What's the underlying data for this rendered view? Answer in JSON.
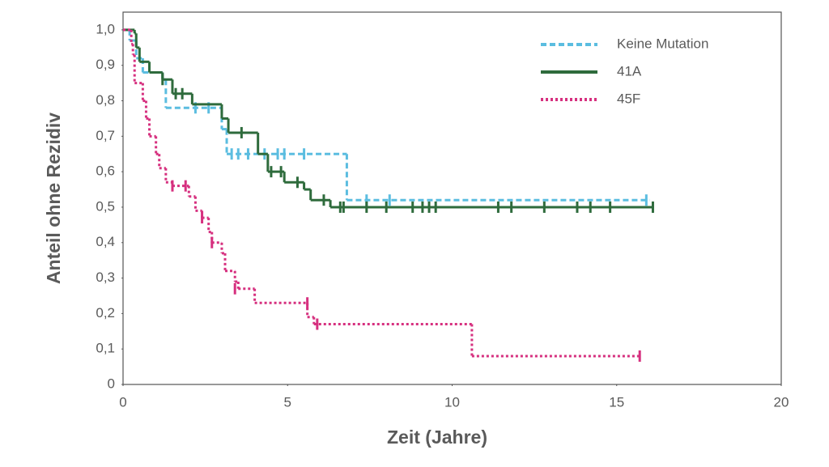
{
  "chart_data": {
    "type": "step",
    "x_label": "Zeit (Jahre)",
    "y_label": "Anteil ohne Rezidiv",
    "xlim": [
      0,
      20
    ],
    "xticks": [
      0,
      5,
      10,
      15,
      20
    ],
    "ylim": [
      0,
      1.05
    ],
    "yticks": [
      0,
      {
        "value": 0.1,
        "label": "0,1"
      },
      {
        "value": 0.2,
        "label": "0,2"
      },
      {
        "value": 0.3,
        "label": "0,3"
      },
      {
        "value": 0.4,
        "label": "0,4"
      },
      {
        "value": 0.5,
        "label": "0,5"
      },
      {
        "value": 0.6,
        "label": "0,6"
      },
      {
        "value": 0.7,
        "label": "0,7"
      },
      {
        "value": 0.8,
        "label": "0,8"
      },
      {
        "value": 0.9,
        "label": "0,9"
      },
      {
        "value": 1.0,
        "label": "1,0"
      }
    ],
    "grid": false,
    "legend": "upper right",
    "series": [
      {
        "name": "Keine Mutation",
        "color": "#5bbde0",
        "dash": "dashed",
        "x": [
          0,
          0.2,
          0.4,
          0.6,
          1.2,
          1.3,
          3.0,
          3.15,
          6.8,
          16.0
        ],
        "values": [
          1.0,
          0.97,
          0.92,
          0.88,
          0.86,
          0.78,
          0.72,
          0.65,
          0.52,
          0.52
        ],
        "censored": {
          "x": [
            2.2,
            2.6,
            3.3,
            3.5,
            3.8,
            4.3,
            4.7,
            4.9,
            5.5,
            7.4,
            8.1,
            15.9
          ],
          "values": [
            0.78,
            0.78,
            0.65,
            0.65,
            0.65,
            0.65,
            0.65,
            0.65,
            0.65,
            0.52,
            0.52,
            0.52
          ]
        }
      },
      {
        "name": "41A",
        "color": "#2e6b3c",
        "dash": "solid",
        "x": [
          0,
          0.35,
          0.4,
          0.5,
          0.8,
          1.2,
          1.5,
          2.1,
          3.0,
          3.2,
          4.1,
          4.4,
          4.9,
          5.5,
          5.7,
          6.3,
          16.1
        ],
        "values": [
          1.0,
          0.99,
          0.95,
          0.91,
          0.88,
          0.86,
          0.82,
          0.79,
          0.75,
          0.71,
          0.65,
          0.6,
          0.57,
          0.55,
          0.52,
          0.5,
          0.5
        ],
        "censored": {
          "x": [
            1.2,
            1.6,
            1.8,
            3.6,
            4.5,
            4.8,
            5.3,
            6.1,
            6.6,
            6.7,
            7.4,
            8.0,
            8.8,
            9.1,
            9.3,
            9.5,
            11.4,
            11.8,
            12.8,
            13.8,
            14.2,
            14.8,
            16.1
          ],
          "values": [
            0.86,
            0.82,
            0.82,
            0.71,
            0.6,
            0.6,
            0.57,
            0.52,
            0.5,
            0.5,
            0.5,
            0.5,
            0.5,
            0.5,
            0.5,
            0.5,
            0.5,
            0.5,
            0.5,
            0.5,
            0.5,
            0.5,
            0.5
          ]
        }
      },
      {
        "name": "45F",
        "color": "#d6307f",
        "dash": "dotted",
        "x": [
          0,
          0.25,
          0.3,
          0.35,
          0.6,
          0.7,
          0.8,
          1.0,
          1.1,
          1.3,
          1.5,
          2.0,
          2.2,
          2.4,
          2.6,
          2.7,
          3.0,
          3.1,
          3.4,
          3.5,
          4.0,
          5.6,
          5.8,
          10.6,
          15.7
        ],
        "values": [
          1.0,
          0.96,
          0.93,
          0.85,
          0.8,
          0.75,
          0.7,
          0.65,
          0.61,
          0.57,
          0.56,
          0.53,
          0.49,
          0.47,
          0.43,
          0.4,
          0.37,
          0.32,
          0.29,
          0.27,
          0.23,
          0.19,
          0.17,
          0.08,
          0.08
        ],
        "censored": {
          "x": [
            1.5,
            1.9,
            2.4,
            2.7,
            3.4,
            5.6,
            5.9,
            15.7
          ],
          "values": [
            0.56,
            0.56,
            0.47,
            0.4,
            0.27,
            0.23,
            0.17,
            0.08
          ]
        }
      }
    ]
  }
}
